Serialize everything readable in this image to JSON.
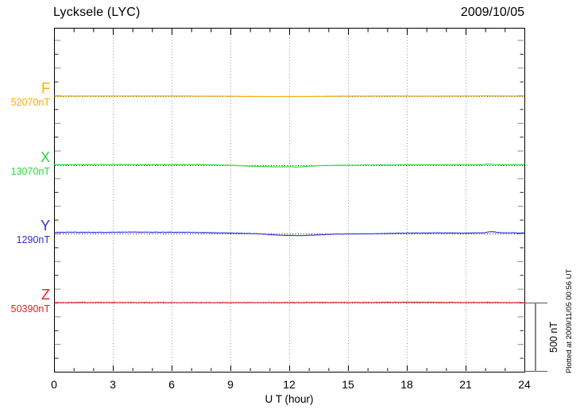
{
  "chart_data": {
    "type": "line",
    "station": "Lycksele (LYC)",
    "date": "2009/10/05",
    "xlabel": "U T (hour)",
    "x_range_hours": [
      0,
      24
    ],
    "x_tick_hours": [
      0,
      3,
      6,
      9,
      12,
      15,
      18,
      21,
      24
    ],
    "x_minor_tick_step_hours": 1,
    "gridline_hours": [
      3,
      6,
      9,
      12,
      15,
      18,
      21
    ],
    "y_minor_tick_nT": 100,
    "trace_separation_nT": 500,
    "scale_bar_nT": 500,
    "scale_bar_label": "500 nT",
    "note": "Plotted at 2009/11/05 00:56 UT",
    "grid": "dotted",
    "series": [
      {
        "name": "F",
        "baseline_label": "52070nT",
        "baseline_nT": 52070,
        "color": "#FFAD00",
        "noise_nT": 1.3,
        "points_hour_nT": [
          [
            0,
            1
          ],
          [
            2,
            1
          ],
          [
            4,
            1
          ],
          [
            6,
            1
          ],
          [
            8,
            0
          ],
          [
            9,
            -1
          ],
          [
            10,
            -2
          ],
          [
            11,
            -3
          ],
          [
            12,
            -3
          ],
          [
            13,
            -2
          ],
          [
            14,
            -1
          ],
          [
            15,
            0
          ],
          [
            17,
            1
          ],
          [
            19,
            0
          ],
          [
            21,
            1
          ],
          [
            22,
            2
          ],
          [
            23,
            1
          ],
          [
            24,
            1
          ]
        ]
      },
      {
        "name": "X",
        "baseline_label": "13070nT",
        "baseline_nT": 13070,
        "color": "#2BD93A",
        "noise_nT": 1.8,
        "points_hour_nT": [
          [
            0,
            4
          ],
          [
            1,
            4
          ],
          [
            2,
            5
          ],
          [
            3,
            4
          ],
          [
            4,
            5
          ],
          [
            5,
            4
          ],
          [
            6,
            4
          ],
          [
            7,
            5
          ],
          [
            8,
            3
          ],
          [
            9,
            0
          ],
          [
            9.5,
            -4
          ],
          [
            10,
            -7
          ],
          [
            10.5,
            -9
          ],
          [
            11,
            -11
          ],
          [
            11.5,
            -12
          ],
          [
            12,
            -11
          ],
          [
            12.5,
            -13
          ],
          [
            13,
            -8
          ],
          [
            13.5,
            -4
          ],
          [
            14,
            -2
          ],
          [
            15,
            0
          ],
          [
            16,
            2
          ],
          [
            17,
            2
          ],
          [
            18,
            3
          ],
          [
            19,
            3
          ],
          [
            20,
            3
          ],
          [
            21,
            3
          ],
          [
            21.8,
            4
          ],
          [
            22.1,
            9
          ],
          [
            22.4,
            5
          ],
          [
            23,
            3
          ],
          [
            23.5,
            4
          ],
          [
            24,
            3
          ]
        ]
      },
      {
        "name": "Y",
        "baseline_label": "1290nT",
        "baseline_nT": 1290,
        "color": "#2E2ED8",
        "noise_nT": 1.8,
        "points_hour_nT": [
          [
            0,
            8
          ],
          [
            1,
            9
          ],
          [
            2,
            8
          ],
          [
            3,
            9
          ],
          [
            4,
            10
          ],
          [
            5,
            9
          ],
          [
            6,
            9
          ],
          [
            7,
            8
          ],
          [
            8,
            6
          ],
          [
            9,
            3
          ],
          [
            10,
            0
          ],
          [
            10.5,
            -3
          ],
          [
            11,
            -8
          ],
          [
            11.5,
            -12
          ],
          [
            12,
            -14
          ],
          [
            12.5,
            -15
          ],
          [
            13,
            -13
          ],
          [
            13.5,
            -10
          ],
          [
            14,
            -6
          ],
          [
            14.5,
            -4
          ],
          [
            15,
            -3
          ],
          [
            16,
            -2
          ],
          [
            17,
            0
          ],
          [
            17.5,
            2
          ],
          [
            18,
            3
          ],
          [
            19,
            4
          ],
          [
            20,
            4
          ],
          [
            21,
            3
          ],
          [
            21.5,
            4
          ],
          [
            22,
            6
          ],
          [
            22.3,
            14
          ],
          [
            22.6,
            8
          ],
          [
            23,
            4
          ],
          [
            23.4,
            6
          ],
          [
            23.7,
            3
          ],
          [
            24,
            4
          ]
        ]
      },
      {
        "name": "Z",
        "baseline_label": "50390nT",
        "baseline_nT": 50390,
        "color": "#DD2222",
        "noise_nT": 2.2,
        "points_hour_nT": [
          [
            0,
            0
          ],
          [
            2,
            1
          ],
          [
            4,
            0
          ],
          [
            6,
            0
          ],
          [
            8,
            -1
          ],
          [
            10,
            0
          ],
          [
            12,
            0
          ],
          [
            14,
            1
          ],
          [
            16,
            1
          ],
          [
            17,
            2
          ],
          [
            18,
            2
          ],
          [
            19,
            2
          ],
          [
            20,
            1
          ],
          [
            21,
            0
          ],
          [
            22,
            1
          ],
          [
            23,
            0
          ],
          [
            24,
            0
          ]
        ]
      }
    ]
  }
}
